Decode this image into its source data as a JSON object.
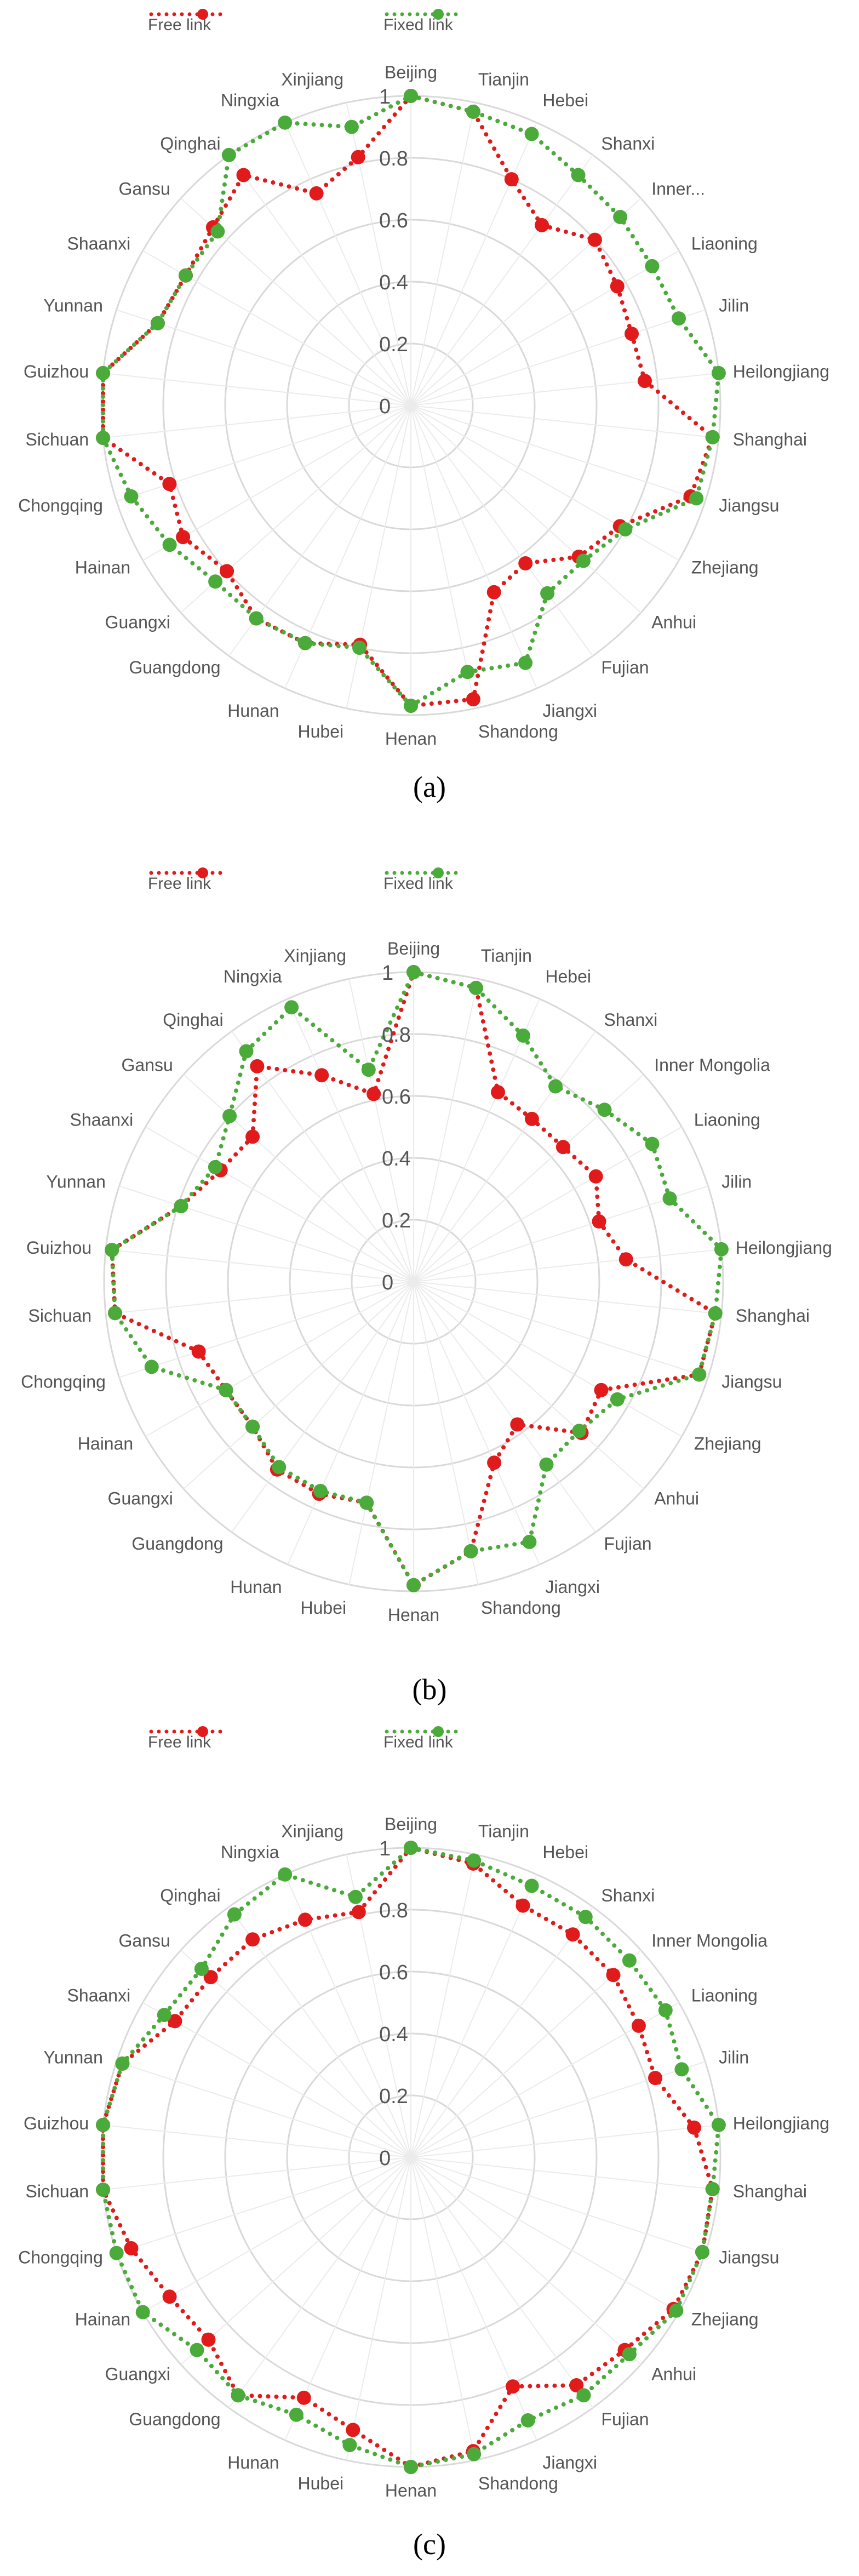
{
  "chart_data": [
    {
      "panel": "a",
      "type": "radar",
      "caption": "(a)",
      "categories": [
        "Beijing",
        "Tianjin",
        "Hebei",
        "Shanxi",
        "Inner...",
        "Liaoning",
        "Jilin",
        "Heilongjiang",
        "Shanghai",
        "Jiangsu",
        "Zhejiang",
        "Anhui",
        "Fujian",
        "Jiangxi",
        "Shandong",
        "Henan",
        "Hubei",
        "Hunan",
        "Guangdong",
        "Guangxi",
        "Hainan",
        "Chongqing",
        "Sichuan",
        "Guizhou",
        "Yunnan",
        "Shaanxi",
        "Gansu",
        "Qinghai",
        "Ningxia",
        "Xinjiang"
      ],
      "ticks": [
        "0",
        "0.2",
        "0.4",
        "0.6",
        "0.8",
        "1"
      ],
      "rlim": [
        0,
        1
      ],
      "series": [
        {
          "name": "Free link",
          "color": "#e11b1b",
          "values": [
            1.0,
            0.97,
            0.8,
            0.72,
            0.8,
            0.77,
            0.75,
            0.76,
            0.98,
            0.95,
            0.78,
            0.73,
            0.63,
            0.66,
            0.97,
            0.97,
            0.79,
            0.84,
            0.85,
            0.8,
            0.85,
            0.82,
            1.0,
            1.0,
            0.86,
            0.84,
            0.86,
            0.92,
            0.75,
            0.82
          ]
        },
        {
          "name": "Fixed link",
          "color": "#4aaa3a",
          "values": [
            1.0,
            0.97,
            0.96,
            0.92,
            0.91,
            0.9,
            0.91,
            1.0,
            0.98,
            0.97,
            0.8,
            0.75,
            0.75,
            0.91,
            0.88,
            0.97,
            0.8,
            0.84,
            0.85,
            0.85,
            0.9,
            0.95,
            1.0,
            1.0,
            0.86,
            0.84,
            0.84,
            1.0,
            1.0,
            0.92
          ]
        }
      ]
    },
    {
      "panel": "b",
      "type": "radar",
      "caption": "(b)",
      "categories": [
        "Beijing",
        "Tianjin",
        "Hebei",
        "Shanxi",
        "Inner Mongolia",
        "Liaoning",
        "Jilin",
        "Heilongjiang",
        "Shanghai",
        "Jiangsu",
        "Zhejiang",
        "Anhui",
        "Fujian",
        "Jiangxi",
        "Shandong",
        "Henan",
        "Hubei",
        "Hunan",
        "Guangdong",
        "Guangxi",
        "Hainan",
        "Chongqing",
        "Sichuan",
        "Guizhou",
        "Yunnan",
        "Shaanxi",
        "Gansu",
        "Qinghai",
        "Ningxia",
        "Xinjiang"
      ],
      "ticks": [
        "0",
        "0.2",
        "0.4",
        "0.6",
        "0.8",
        "1"
      ],
      "rlim": [
        0,
        1
      ],
      "series": [
        {
          "name": "Free link",
          "color": "#e11b1b",
          "values": [
            1.0,
            0.97,
            0.67,
            0.65,
            0.65,
            0.68,
            0.63,
            0.69,
            0.98,
            0.97,
            0.7,
            0.73,
            0.57,
            0.64,
            0.89,
            0.98,
            0.73,
            0.75,
            0.75,
            0.7,
            0.7,
            0.73,
            0.97,
            0.98,
            0.79,
            0.72,
            0.7,
            0.86,
            0.73,
            0.62
          ]
        },
        {
          "name": "Fixed link",
          "color": "#4aaa3a",
          "values": [
            1.0,
            0.97,
            0.87,
            0.78,
            0.83,
            0.89,
            0.87,
            1.0,
            0.98,
            0.97,
            0.76,
            0.72,
            0.73,
            0.92,
            0.89,
            0.98,
            0.73,
            0.74,
            0.74,
            0.7,
            0.7,
            0.89,
            0.97,
            0.98,
            0.79,
            0.74,
            0.8,
            0.92,
            0.97,
            0.7
          ]
        }
      ]
    },
    {
      "panel": "c",
      "type": "radar",
      "caption": "(c)",
      "categories": [
        "Beijing",
        "Tianjin",
        "Hebei",
        "Shanxi",
        "Inner Mongolia",
        "Liaoning",
        "Jilin",
        "Heilongjiang",
        "Shanghai",
        "Jiangsu",
        "Zhejiang",
        "Anhui",
        "Fujian",
        "Jiangxi",
        "Shandong",
        "Henan",
        "Hubei",
        "Hunan",
        "Guangdong",
        "Guangxi",
        "Hainan",
        "Chongqing",
        "Sichuan",
        "Guizhou",
        "Yunnan",
        "Shaanxi",
        "Gansu",
        "Qinghai",
        "Ningxia",
        "Xinjiang"
      ],
      "ticks": [
        "0",
        "0.2",
        "0.4",
        "0.6",
        "0.8",
        "1"
      ],
      "rlim": [
        0,
        1
      ],
      "series": [
        {
          "name": "Free link",
          "color": "#e11b1b",
          "values": [
            1.0,
            0.97,
            0.89,
            0.89,
            0.88,
            0.85,
            0.83,
            0.92,
            0.98,
            0.99,
            0.98,
            0.93,
            0.91,
            0.81,
            0.97,
            1.0,
            0.9,
            0.85,
            0.95,
            0.88,
            0.9,
            0.95,
            1.0,
            1.0,
            0.98,
            0.88,
            0.87,
            0.87,
            0.84,
            0.81
          ]
        },
        {
          "name": "Fixed link",
          "color": "#4aaa3a",
          "values": [
            1.0,
            0.98,
            0.96,
            0.96,
            0.95,
            0.95,
            0.92,
            1.0,
            0.98,
            0.99,
            0.99,
            0.95,
            0.95,
            0.93,
            0.98,
            1.0,
            0.95,
            0.91,
            0.95,
            0.93,
            1.0,
            1.0,
            1.0,
            1.0,
            0.98,
            0.92,
            0.91,
            0.97,
            1.0,
            0.86
          ]
        }
      ]
    }
  ]
}
